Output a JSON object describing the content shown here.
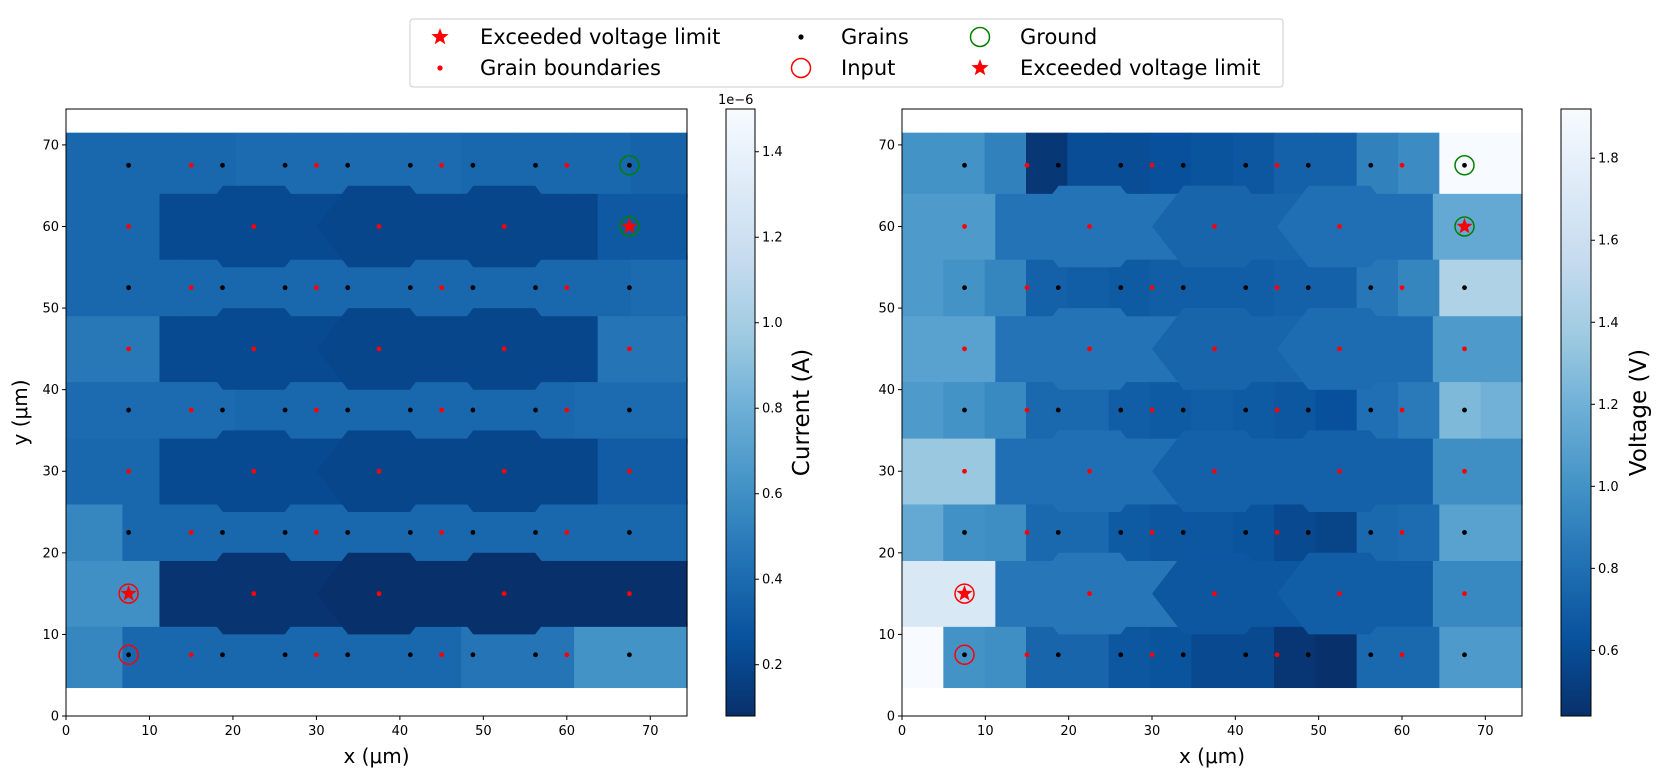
{
  "legend": {
    "items": [
      {
        "label": "Exceeded voltage limit",
        "marker": "star",
        "color": "#ff0000"
      },
      {
        "label": "Grain boundaries",
        "marker": "small-dot",
        "color": "#ff0000"
      },
      {
        "label": "Grains",
        "marker": "small-dot",
        "color": "#000000"
      },
      {
        "label": "Input",
        "marker": "open-circle",
        "color": "#ff0000"
      },
      {
        "label": "Ground",
        "marker": "open-circle",
        "color": "#008000"
      },
      {
        "label": "Exceeded voltage limit",
        "marker": "star",
        "color": "#ff0000"
      }
    ],
    "placement": "top-center",
    "columns": 3
  },
  "chart_data": [
    {
      "type": "heatmap",
      "id": "current",
      "title": "",
      "xlabel": "x (μm)",
      "ylabel": "y (μm)",
      "xlim": [
        0,
        74.4
      ],
      "ylim": [
        0,
        74.4
      ],
      "xticks": [
        "0",
        "10",
        "20",
        "30",
        "40",
        "50",
        "60",
        "70"
      ],
      "yticks": [
        "0",
        "10",
        "20",
        "30",
        "40",
        "50",
        "60",
        "70"
      ],
      "colorbar": {
        "label": "Current (A)",
        "offset_text": "1e−6",
        "range": [
          0.08,
          1.5
        ],
        "ticks": [
          "0.2",
          "0.4",
          "0.6",
          "0.8",
          "1.0",
          "1.2",
          "1.4"
        ],
        "colormap": "Blues_r"
      },
      "grain_rows": [
        [
          0.55,
          0.38,
          0.38,
          0.38,
          0.38,
          0.38,
          0.38,
          0.45,
          0.45,
          0.62,
          0.62
        ],
        [
          0.55,
          0.38,
          0.38,
          0.38,
          0.38,
          0.38,
          0.38,
          0.38,
          0.38,
          0.38,
          0.38
        ],
        [
          0.4,
          0.4,
          0.4,
          0.38,
          0.38,
          0.38,
          0.38,
          0.38,
          0.38,
          0.4,
          0.4
        ],
        [
          0.38,
          0.38,
          0.38,
          0.38,
          0.38,
          0.38,
          0.38,
          0.38,
          0.38,
          0.38,
          0.4
        ],
        [
          0.38,
          0.38,
          0.38,
          0.4,
          0.4,
          0.4,
          0.4,
          0.38,
          0.38,
          0.38,
          0.36
        ]
      ],
      "boundary_horizontal": [
        [
          0.6,
          0.1,
          0.06,
          0.06,
          0.08
        ],
        [
          0.38,
          0.22,
          0.2,
          0.2,
          0.32
        ],
        [
          0.47,
          0.22,
          0.2,
          0.2,
          0.45
        ],
        [
          0.38,
          0.22,
          0.2,
          0.2,
          0.3
        ],
        [
          1.1,
          0.18,
          0.15,
          0.15,
          1.5
        ]
      ],
      "special_points": {
        "inputs": [
          [
            7.5,
            7.5
          ],
          [
            7.5,
            15
          ]
        ],
        "grounds": [
          [
            67.5,
            60
          ],
          [
            67.5,
            67.5
          ]
        ],
        "exceeded": [
          [
            7.5,
            15
          ],
          [
            67.5,
            60
          ]
        ]
      }
    },
    {
      "type": "heatmap",
      "id": "voltage",
      "title": "",
      "xlabel": "x (μm)",
      "ylabel": "",
      "xlim": [
        0,
        74.4
      ],
      "ylim": [
        0,
        74.4
      ],
      "xticks": [
        "0",
        "10",
        "20",
        "30",
        "40",
        "50",
        "60",
        "70"
      ],
      "yticks": [
        "0",
        "10",
        "20",
        "30",
        "40",
        "50",
        "60",
        "70"
      ],
      "colorbar": {
        "label": "Voltage (V)",
        "offset_text": "",
        "range": [
          0.44,
          1.92
        ],
        "ticks": [
          "0.6",
          "0.8",
          "1.0",
          "1.2",
          "1.4",
          "1.6",
          "1.8"
        ],
        "colormap": "Blues_r"
      },
      "grain_rows": [
        [
          1.92,
          1.0,
          0.98,
          0.74,
          0.74,
          0.66,
          0.64,
          0.58,
          0.58,
          0.47,
          0.44,
          0.76,
          0.76,
          1.05,
          1.05
        ],
        [
          1.15,
          0.99,
          0.97,
          0.76,
          0.76,
          0.68,
          0.66,
          0.66,
          0.64,
          0.58,
          0.55,
          0.76,
          0.78,
          1.1,
          1.1
        ],
        [
          1.05,
          1.0,
          0.95,
          0.76,
          0.76,
          0.7,
          0.68,
          0.7,
          0.68,
          0.66,
          0.62,
          0.8,
          0.86,
          1.25,
          1.2
        ],
        [
          1.05,
          1.0,
          0.92,
          0.72,
          0.7,
          0.68,
          0.7,
          0.7,
          0.7,
          0.72,
          0.72,
          0.84,
          0.92,
          1.45,
          1.45
        ],
        [
          1.0,
          1.0,
          0.9,
          0.48,
          0.6,
          0.6,
          0.62,
          0.64,
          0.66,
          0.72,
          0.72,
          0.9,
          0.96,
          1.92,
          1.92
        ]
      ],
      "boundary_horizontal": [
        [
          1.7,
          0.84,
          0.66,
          0.7,
          0.94
        ],
        [
          1.35,
          0.8,
          0.72,
          0.72,
          0.98
        ],
        [
          1.1,
          0.82,
          0.74,
          0.78,
          1.05
        ],
        [
          1.05,
          0.82,
          0.74,
          0.8,
          1.15
        ],
        [
          0.92,
          0.82,
          0.76,
          0.86,
          1.7
        ]
      ],
      "special_points": {
        "inputs": [
          [
            7.5,
            7.5
          ],
          [
            7.5,
            15
          ]
        ],
        "grounds": [
          [
            67.5,
            60
          ],
          [
            67.5,
            67.5
          ]
        ],
        "exceeded": [
          [
            7.5,
            15
          ],
          [
            67.5,
            60
          ]
        ]
      }
    }
  ]
}
